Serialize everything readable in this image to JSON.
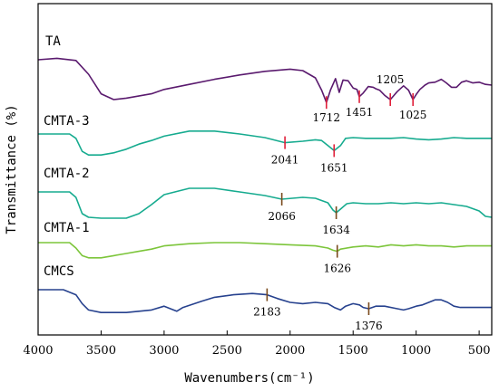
{
  "chart_data": {
    "type": "line",
    "xlabel": "Wavenumbers(cm⁻¹)",
    "ylabel": "Transmittance (%)",
    "xlim": [
      4000,
      400
    ],
    "x_ticks": [
      "4000",
      "3500",
      "3000",
      "2500",
      "2000",
      "1500",
      "1000",
      "500"
    ],
    "series": [
      {
        "name": "TA",
        "color": "#5a1a6e",
        "marker_color": "#e0203a",
        "points": [
          [
            4000,
            0.5
          ],
          [
            3850,
            0.3
          ],
          [
            3700,
            0.6
          ],
          [
            3600,
            2.5
          ],
          [
            3500,
            5.2
          ],
          [
            3400,
            6.0
          ],
          [
            3300,
            5.8
          ],
          [
            3100,
            5.2
          ],
          [
            3000,
            4.6
          ],
          [
            2800,
            3.9
          ],
          [
            2600,
            3.2
          ],
          [
            2400,
            2.6
          ],
          [
            2200,
            2.1
          ],
          [
            2000,
            1.8
          ],
          [
            1900,
            2.0
          ],
          [
            1800,
            3.0
          ],
          [
            1750,
            4.7
          ],
          [
            1712,
            6.4
          ],
          [
            1680,
            4.7
          ],
          [
            1640,
            3.1
          ],
          [
            1610,
            5.0
          ],
          [
            1580,
            3.3
          ],
          [
            1540,
            3.4
          ],
          [
            1500,
            4.4
          ],
          [
            1470,
            4.6
          ],
          [
            1451,
            5.6
          ],
          [
            1420,
            5.1
          ],
          [
            1380,
            4.2
          ],
          [
            1340,
            4.3
          ],
          [
            1320,
            4.5
          ],
          [
            1290,
            4.7
          ],
          [
            1250,
            5.4
          ],
          [
            1205,
            6.0
          ],
          [
            1180,
            5.5
          ],
          [
            1150,
            4.9
          ],
          [
            1100,
            4.1
          ],
          [
            1060,
            4.7
          ],
          [
            1025,
            6.0
          ],
          [
            1000,
            5.3
          ],
          [
            970,
            4.6
          ],
          [
            930,
            4.0
          ],
          [
            900,
            3.7
          ],
          [
            850,
            3.6
          ],
          [
            800,
            3.2
          ],
          [
            760,
            3.7
          ],
          [
            720,
            4.3
          ],
          [
            680,
            4.3
          ],
          [
            640,
            3.6
          ],
          [
            600,
            3.4
          ],
          [
            550,
            3.7
          ],
          [
            500,
            3.6
          ],
          [
            450,
            3.9
          ],
          [
            400,
            4.0
          ]
        ],
        "peaks": [
          {
            "x": 1712,
            "label": "1712"
          },
          {
            "x": 1451,
            "label": "1451"
          },
          {
            "x": 1205,
            "label": "1205"
          },
          {
            "x": 1025,
            "label": "1025"
          }
        ]
      },
      {
        "name": "CMTA-3",
        "color": "#16ab8f",
        "marker_color": "#e0203a",
        "points": [
          [
            4000,
            0.0
          ],
          [
            3750,
            0.0
          ],
          [
            3700,
            0.6
          ],
          [
            3650,
            2.4
          ],
          [
            3600,
            2.9
          ],
          [
            3500,
            2.9
          ],
          [
            3400,
            2.6
          ],
          [
            3300,
            2.1
          ],
          [
            3200,
            1.4
          ],
          [
            3100,
            0.9
          ],
          [
            3000,
            0.3
          ],
          [
            2800,
            -0.4
          ],
          [
            2600,
            -0.4
          ],
          [
            2400,
            0.0
          ],
          [
            2200,
            0.5
          ],
          [
            2041,
            1.2
          ],
          [
            1900,
            1.0
          ],
          [
            1800,
            0.8
          ],
          [
            1750,
            0.9
          ],
          [
            1700,
            1.6
          ],
          [
            1651,
            2.3
          ],
          [
            1600,
            1.6
          ],
          [
            1560,
            0.6
          ],
          [
            1500,
            0.5
          ],
          [
            1400,
            0.6
          ],
          [
            1300,
            0.6
          ],
          [
            1200,
            0.6
          ],
          [
            1100,
            0.5
          ],
          [
            1000,
            0.7
          ],
          [
            900,
            0.8
          ],
          [
            800,
            0.7
          ],
          [
            700,
            0.5
          ],
          [
            600,
            0.6
          ],
          [
            500,
            0.6
          ],
          [
            400,
            0.6
          ]
        ],
        "peaks": [
          {
            "x": 2041,
            "label": "2041"
          },
          {
            "x": 1651,
            "label": "1651"
          }
        ]
      },
      {
        "name": "CMTA-2",
        "color": "#16ab8f",
        "marker_color": "#7a4a1c",
        "points": [
          [
            4000,
            0.0
          ],
          [
            3750,
            0.0
          ],
          [
            3700,
            0.6
          ],
          [
            3650,
            2.4
          ],
          [
            3600,
            2.8
          ],
          [
            3500,
            2.9
          ],
          [
            3300,
            2.9
          ],
          [
            3200,
            2.4
          ],
          [
            3100,
            1.4
          ],
          [
            3000,
            0.3
          ],
          [
            2800,
            -0.4
          ],
          [
            2600,
            -0.4
          ],
          [
            2400,
            0.0
          ],
          [
            2200,
            0.4
          ],
          [
            2066,
            0.8
          ],
          [
            1900,
            0.6
          ],
          [
            1800,
            0.7
          ],
          [
            1700,
            1.2
          ],
          [
            1660,
            2.0
          ],
          [
            1634,
            2.3
          ],
          [
            1600,
            1.9
          ],
          [
            1550,
            1.3
          ],
          [
            1500,
            1.2
          ],
          [
            1400,
            1.3
          ],
          [
            1300,
            1.3
          ],
          [
            1200,
            1.2
          ],
          [
            1100,
            1.3
          ],
          [
            1000,
            1.2
          ],
          [
            900,
            1.3
          ],
          [
            800,
            1.2
          ],
          [
            700,
            1.4
          ],
          [
            600,
            1.6
          ],
          [
            500,
            2.1
          ],
          [
            450,
            2.7
          ],
          [
            400,
            2.8
          ]
        ],
        "peaks": [
          {
            "x": 2066,
            "label": "2066"
          },
          {
            "x": 1634,
            "label": "1634"
          }
        ]
      },
      {
        "name": "CMTA-1",
        "color": "#7cc53a",
        "marker_color": "#7a4a1c",
        "points": [
          [
            4000,
            0.0
          ],
          [
            3750,
            0.0
          ],
          [
            3700,
            0.5
          ],
          [
            3650,
            1.2
          ],
          [
            3600,
            1.4
          ],
          [
            3500,
            1.4
          ],
          [
            3400,
            1.2
          ],
          [
            3300,
            1.0
          ],
          [
            3200,
            0.8
          ],
          [
            3100,
            0.6
          ],
          [
            3000,
            0.3
          ],
          [
            2800,
            0.1
          ],
          [
            2600,
            0.0
          ],
          [
            2400,
            0.0
          ],
          [
            2200,
            0.1
          ],
          [
            2000,
            0.2
          ],
          [
            1800,
            0.3
          ],
          [
            1700,
            0.5
          ],
          [
            1660,
            0.7
          ],
          [
            1626,
            0.8
          ],
          [
            1600,
            0.6
          ],
          [
            1500,
            0.4
          ],
          [
            1400,
            0.3
          ],
          [
            1300,
            0.4
          ],
          [
            1200,
            0.2
          ],
          [
            1100,
            0.3
          ],
          [
            1000,
            0.2
          ],
          [
            900,
            0.3
          ],
          [
            800,
            0.3
          ],
          [
            700,
            0.4
          ],
          [
            600,
            0.3
          ],
          [
            500,
            0.3
          ],
          [
            400,
            0.3
          ]
        ],
        "peaks": [
          {
            "x": 1626,
            "label": "1626"
          }
        ]
      },
      {
        "name": "CMCS",
        "color": "#26418e",
        "marker_color": "#7a4a1c",
        "points": [
          [
            4000,
            0.0
          ],
          [
            3800,
            0.0
          ],
          [
            3700,
            0.4
          ],
          [
            3650,
            1.1
          ],
          [
            3600,
            1.6
          ],
          [
            3500,
            1.8
          ],
          [
            3400,
            1.8
          ],
          [
            3300,
            1.8
          ],
          [
            3200,
            1.7
          ],
          [
            3100,
            1.6
          ],
          [
            3000,
            1.3
          ],
          [
            2950,
            1.5
          ],
          [
            2900,
            1.7
          ],
          [
            2850,
            1.4
          ],
          [
            2700,
            0.9
          ],
          [
            2600,
            0.6
          ],
          [
            2450,
            0.4
          ],
          [
            2300,
            0.3
          ],
          [
            2183,
            0.4
          ],
          [
            2100,
            0.7
          ],
          [
            2000,
            1.0
          ],
          [
            1900,
            1.1
          ],
          [
            1800,
            1.0
          ],
          [
            1700,
            1.1
          ],
          [
            1650,
            1.4
          ],
          [
            1600,
            1.6
          ],
          [
            1560,
            1.3
          ],
          [
            1500,
            1.1
          ],
          [
            1450,
            1.2
          ],
          [
            1420,
            1.4
          ],
          [
            1376,
            1.5
          ],
          [
            1320,
            1.3
          ],
          [
            1250,
            1.3
          ],
          [
            1150,
            1.5
          ],
          [
            1100,
            1.6
          ],
          [
            1060,
            1.5
          ],
          [
            1000,
            1.3
          ],
          [
            950,
            1.2
          ],
          [
            900,
            1.0
          ],
          [
            850,
            0.8
          ],
          [
            800,
            0.8
          ],
          [
            750,
            1.0
          ],
          [
            700,
            1.3
          ],
          [
            650,
            1.4
          ],
          [
            600,
            1.4
          ],
          [
            500,
            1.4
          ],
          [
            400,
            1.4
          ]
        ],
        "peaks": [
          {
            "x": 2183,
            "label": "2183"
          },
          {
            "x": 1376,
            "label": "1376"
          }
        ]
      }
    ]
  }
}
